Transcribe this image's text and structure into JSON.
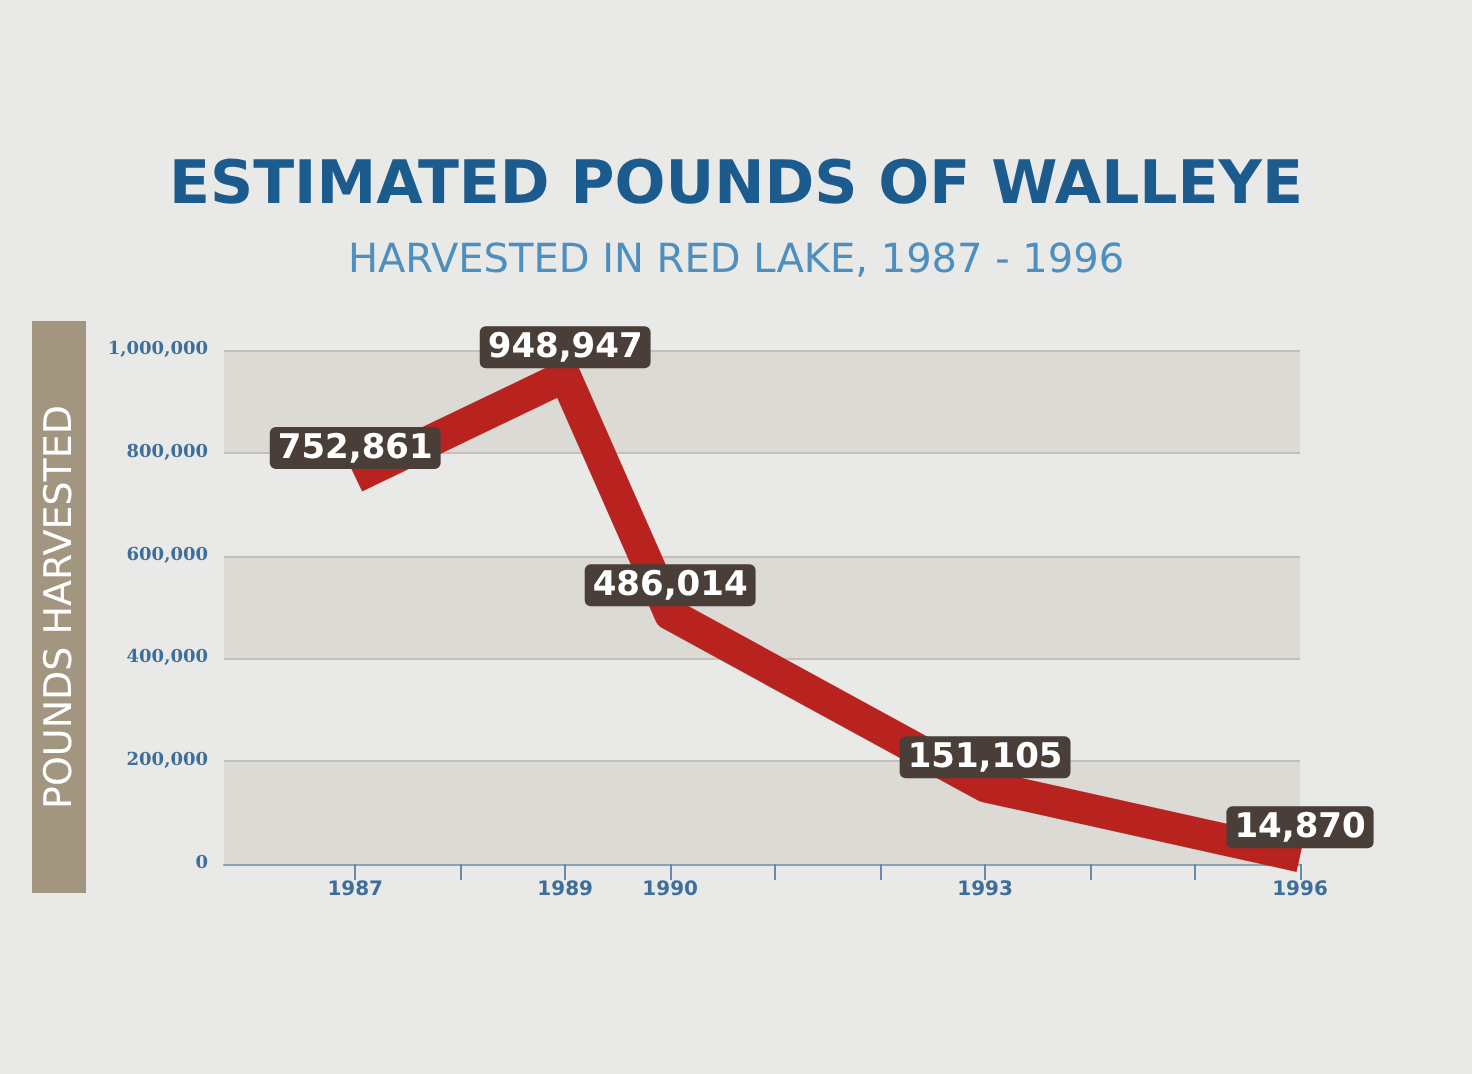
{
  "chart_data": {
    "type": "line",
    "title": "ESTIMATED POUNDS OF WALLEYE",
    "subtitle": "HARVESTED IN RED LAKE, 1987 - 1996",
    "ylabel": "POUNDS HARVESTED",
    "x": [
      1987,
      1989,
      1990,
      1993,
      1996
    ],
    "series": [
      {
        "color": "#b8231f",
        "values": [
          752861,
          948947,
          486014,
          151105,
          14870
        ],
        "value_labels": [
          "752,861",
          "948,947",
          "486,014",
          "151,105",
          "14,870"
        ]
      }
    ],
    "xlim": [
      1985.75,
      1996
    ],
    "xticks": [
      {
        "value": 1987,
        "label": "1987"
      },
      {
        "value": 1988,
        "label": null
      },
      {
        "value": 1989,
        "label": "1989"
      },
      {
        "value": 1990,
        "label": "1990"
      },
      {
        "value": 1991,
        "label": null
      },
      {
        "value": 1992,
        "label": null
      },
      {
        "value": 1993,
        "label": "1993"
      },
      {
        "value": 1994,
        "label": null
      },
      {
        "value": 1995,
        "label": null
      },
      {
        "value": 1996,
        "label": "1996"
      }
    ],
    "ylim": [
      0,
      1000000
    ],
    "yticks": [
      {
        "value": 0,
        "label": "0"
      },
      {
        "value": 200000,
        "label": "200,000"
      },
      {
        "value": 400000,
        "label": "400,000"
      },
      {
        "value": 600000,
        "label": "600,000"
      },
      {
        "value": 800000,
        "label": "800,000"
      },
      {
        "value": 1000000,
        "label": "1,000,000"
      }
    ],
    "grid": "y",
    "marker": "none",
    "line_style": "solid"
  }
}
